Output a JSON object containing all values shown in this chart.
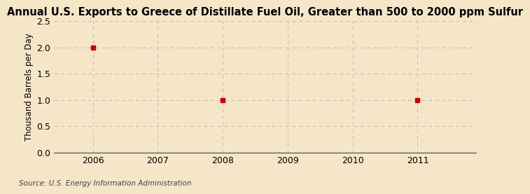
{
  "title": "Annual U.S. Exports to Greece of Distillate Fuel Oil, Greater than 500 to 2000 ppm Sulfur",
  "ylabel": "Thousand Barrels per Day",
  "source": "Source: U.S. Energy Information Administration",
  "background_color": "#f5e6c8",
  "plot_background_color": "#f5e6c8",
  "x_values": [
    2006,
    2008,
    2011
  ],
  "y_values": [
    2.0,
    1.0,
    1.0
  ],
  "xlim": [
    2005.4,
    2011.9
  ],
  "ylim": [
    0.0,
    2.5
  ],
  "yticks": [
    0.0,
    0.5,
    1.0,
    1.5,
    2.0,
    2.5
  ],
  "xticks": [
    2006,
    2007,
    2008,
    2009,
    2010,
    2011
  ],
  "marker_color": "#cc0000",
  "marker_size": 4,
  "grid_color": "#bbbbbb",
  "title_fontsize": 10.5,
  "label_fontsize": 8.5,
  "tick_fontsize": 9,
  "source_fontsize": 7.5
}
